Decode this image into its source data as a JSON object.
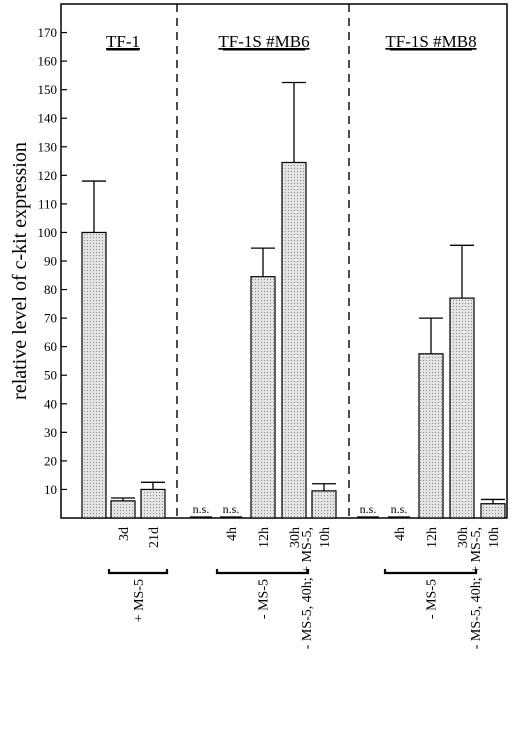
{
  "chart_data": {
    "type": "bar",
    "ylabel": "relative level of c-kit expression",
    "ylim": [
      0,
      180
    ],
    "yticks": [
      10,
      20,
      30,
      40,
      50,
      60,
      70,
      80,
      90,
      100,
      110,
      120,
      130,
      140,
      150,
      160,
      170
    ],
    "bar_fill": "#cfcfcf",
    "groups": [
      {
        "title": "TF-1",
        "bars": [
          {
            "label": "",
            "value": 100,
            "error": 18,
            "ns": ""
          },
          {
            "label": "3d",
            "value": 6,
            "error": 1,
            "ns": ""
          },
          {
            "label": "21d",
            "value": 10,
            "error": 2.5,
            "ns": ""
          }
        ],
        "brackets": [
          {
            "label": "+ MS-5",
            "from": 1,
            "to": 2
          }
        ]
      },
      {
        "title": "TF-1S #MB6",
        "bars": [
          {
            "label": "",
            "value": 0,
            "error": 0,
            "ns": "n.s."
          },
          {
            "label": "4h",
            "value": 0,
            "error": 0,
            "ns": "n.s."
          },
          {
            "label": "12h",
            "value": 84.5,
            "error": 10,
            "ns": ""
          },
          {
            "label": "30h",
            "value": 124.5,
            "error": 28,
            "ns": ""
          },
          {
            "label": "10h",
            "value": 9.5,
            "error": 2.5,
            "ns": ""
          }
        ],
        "brackets": [
          {
            "label": "- MS-5",
            "from": 1,
            "to": 3
          },
          {
            "label": "- MS-5, 40h; + MS-5,",
            "from": 4,
            "to": 4
          }
        ]
      },
      {
        "title": "TF-1S #MB8",
        "bars": [
          {
            "label": "",
            "value": 0,
            "error": 0,
            "ns": "n.s."
          },
          {
            "label": "4h",
            "value": 0,
            "error": 0,
            "ns": "n.s."
          },
          {
            "label": "12h",
            "value": 57.5,
            "error": 12.5,
            "ns": ""
          },
          {
            "label": "30h",
            "value": 77,
            "error": 18.5,
            "ns": ""
          },
          {
            "label": "10h",
            "value": 5,
            "error": 1.5,
            "ns": ""
          }
        ],
        "brackets": [
          {
            "label": "- MS-5",
            "from": 1,
            "to": 3
          },
          {
            "label": "- MS-5, 40h; + MS-5,",
            "from": 4,
            "to": 4
          }
        ]
      }
    ]
  }
}
